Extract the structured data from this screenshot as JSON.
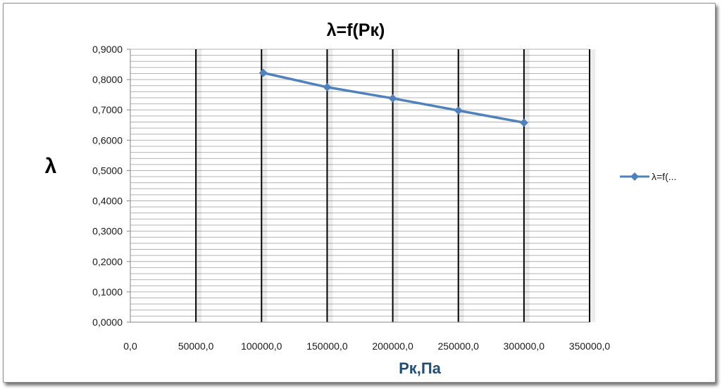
{
  "chart_data": {
    "type": "scatter",
    "title": "λ=f(Pк)",
    "xlabel": "Pк,Па",
    "ylabel": "λ",
    "xlim": [
      0,
      350000
    ],
    "ylim": [
      0,
      0.9
    ],
    "x_ticks": [
      "0,0",
      "50000,0",
      "100000,0",
      "150000,0",
      "200000,0",
      "250000,0",
      "300000,0",
      "350000,0"
    ],
    "y_ticks": [
      "0,0000",
      "0,1000",
      "0,2000",
      "0,3000",
      "0,4000",
      "0,5000",
      "0,6000",
      "0,7000",
      "0,8000",
      "0,9000"
    ],
    "series": [
      {
        "name": "λ=f(...",
        "color": "#4f81bd",
        "marker": "diamond",
        "x": [
          101325,
          150000,
          200000,
          250000,
          300000
        ],
        "y": [
          0.822,
          0.775,
          0.738,
          0.698,
          0.658
        ]
      }
    ],
    "grid": {
      "major_x": true,
      "minor_y": true
    },
    "legend_position": "right"
  }
}
